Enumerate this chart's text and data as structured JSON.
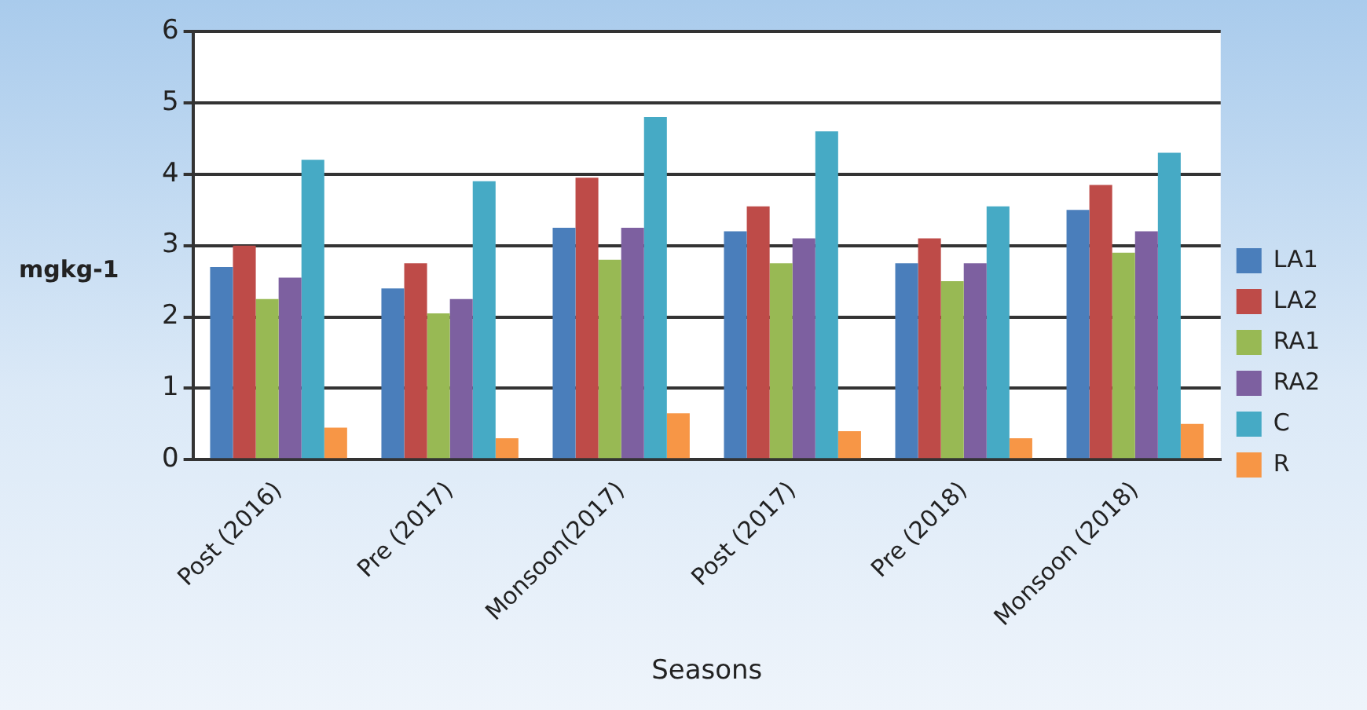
{
  "chart_data": {
    "type": "bar",
    "xlabel": "Seasons",
    "ylabel": "mgkg-1",
    "categories": [
      "Post (2016)",
      "Pre (2017)",
      "Monsoon(2017)",
      "Post (2017)",
      "Pre (2018)",
      "Monsoon (2018)"
    ],
    "series": [
      {
        "name": "LA1",
        "color": "#4a7ebb",
        "values": [
          2.7,
          2.4,
          3.25,
          3.2,
          2.75,
          3.5
        ]
      },
      {
        "name": "LA2",
        "color": "#be4b48",
        "values": [
          3.0,
          2.75,
          3.95,
          3.55,
          3.1,
          3.85
        ]
      },
      {
        "name": "RA1",
        "color": "#98b954",
        "values": [
          2.25,
          2.05,
          2.8,
          2.75,
          2.5,
          2.9
        ]
      },
      {
        "name": "RA2",
        "color": "#7d60a0",
        "values": [
          2.55,
          2.25,
          3.25,
          3.1,
          2.75,
          3.2
        ]
      },
      {
        "name": "C",
        "color": "#46aac5",
        "values": [
          4.2,
          3.9,
          4.8,
          4.6,
          3.55,
          4.3
        ]
      },
      {
        "name": "R",
        "color": "#f79646",
        "values": [
          0.45,
          0.3,
          0.65,
          0.4,
          0.3,
          0.5
        ]
      }
    ],
    "ylim": [
      0,
      6
    ],
    "yticks": [
      0,
      1,
      2,
      3,
      4,
      5,
      6
    ],
    "grid": "y",
    "legend": "right"
  }
}
